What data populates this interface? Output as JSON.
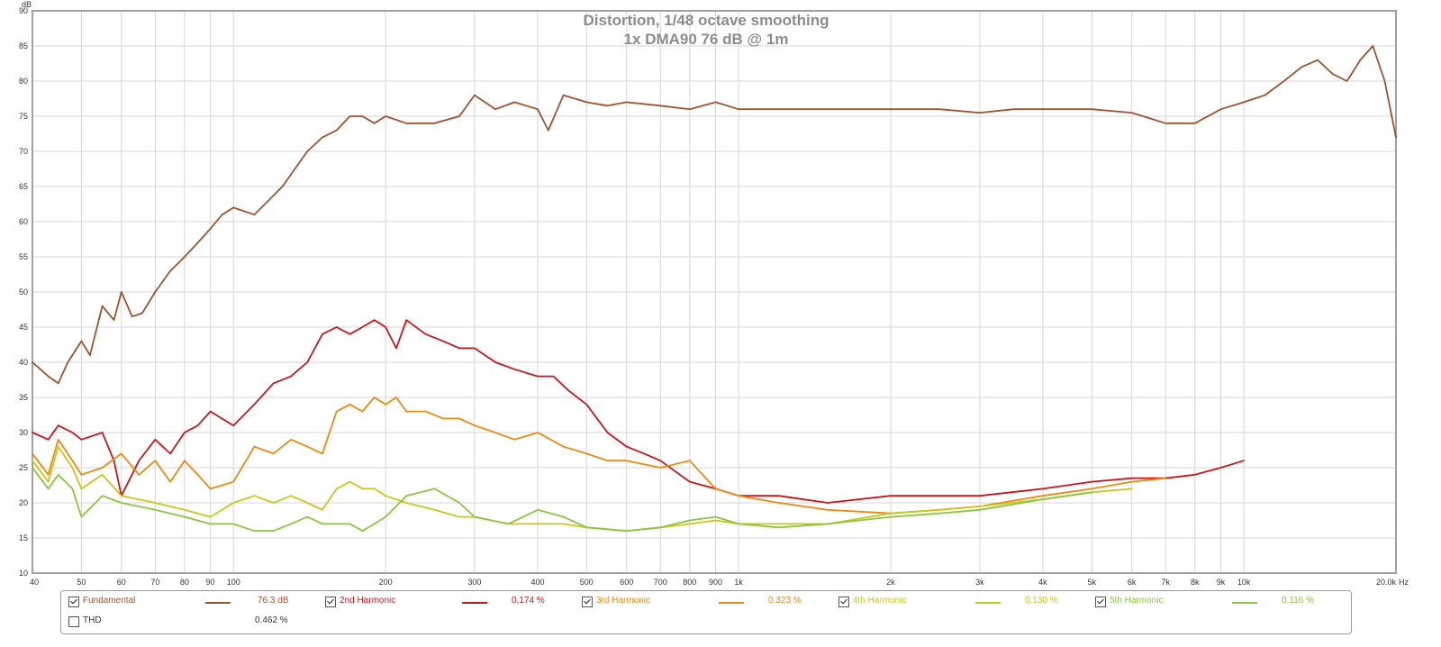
{
  "chart_data": {
    "type": "line",
    "title": "Distortion, 1/48 octave smoothing",
    "subtitle": "1x DMA90 76 dB @ 1m",
    "y_unit": "dB",
    "x_unit": "Hz",
    "xscale": "log",
    "xlim": [
      40,
      20000
    ],
    "ylim": [
      10,
      90
    ],
    "grid": true,
    "y_ticks": [
      10,
      15,
      20,
      25,
      30,
      35,
      40,
      45,
      50,
      55,
      60,
      65,
      70,
      75,
      80,
      85,
      90
    ],
    "x_ticks": [
      {
        "v": 40,
        "label": "40"
      },
      {
        "v": 50,
        "label": "50"
      },
      {
        "v": 60,
        "label": "60"
      },
      {
        "v": 70,
        "label": "70"
      },
      {
        "v": 80,
        "label": "80"
      },
      {
        "v": 90,
        "label": "90"
      },
      {
        "v": 100,
        "label": "100"
      },
      {
        "v": 200,
        "label": "200"
      },
      {
        "v": 300,
        "label": "300"
      },
      {
        "v": 400,
        "label": "400"
      },
      {
        "v": 500,
        "label": "500"
      },
      {
        "v": 600,
        "label": "600"
      },
      {
        "v": 700,
        "label": "700"
      },
      {
        "v": 800,
        "label": "800"
      },
      {
        "v": 900,
        "label": "900"
      },
      {
        "v": 1000,
        "label": "1k"
      },
      {
        "v": 2000,
        "label": "2k"
      },
      {
        "v": 3000,
        "label": "3k"
      },
      {
        "v": 4000,
        "label": "4k"
      },
      {
        "v": 5000,
        "label": "5k"
      },
      {
        "v": 6000,
        "label": "6k"
      },
      {
        "v": 7000,
        "label": "7k"
      },
      {
        "v": 8000,
        "label": "8k"
      },
      {
        "v": 9000,
        "label": "9k"
      },
      {
        "v": 10000,
        "label": "10k"
      },
      {
        "v": 20000,
        "label": "20.0k"
      }
    ],
    "series": [
      {
        "name": "Fundamental",
        "color": "#a0522d",
        "value": "76.3 dB",
        "x": [
          40,
          43,
          45,
          47,
          50,
          52,
          55,
          58,
          60,
          63,
          66,
          70,
          75,
          80,
          85,
          90,
          95,
          100,
          110,
          125,
          140,
          150,
          160,
          170,
          180,
          190,
          200,
          220,
          250,
          280,
          300,
          330,
          360,
          400,
          420,
          450,
          500,
          550,
          600,
          700,
          800,
          900,
          1000,
          1200,
          1500,
          2000,
          2500,
          3000,
          3500,
          4000,
          5000,
          6000,
          7000,
          8000,
          9000,
          10000,
          11000,
          12000,
          13000,
          14000,
          15000,
          16000,
          17000,
          18000,
          19000,
          20000
        ],
        "y": [
          40,
          38,
          37,
          40,
          43,
          41,
          48,
          46,
          50,
          46.5,
          47,
          50,
          53,
          55,
          57,
          59,
          61,
          62,
          61,
          65,
          70,
          72,
          73,
          75,
          75,
          74,
          75,
          74,
          74,
          75,
          78,
          76,
          77,
          76,
          73,
          78,
          77,
          76.5,
          77,
          76.5,
          76,
          77,
          76,
          76,
          76,
          76,
          76,
          75.5,
          76,
          76,
          76,
          75.5,
          74,
          74,
          76,
          77,
          78,
          80,
          82,
          83,
          81,
          80,
          83,
          85,
          80,
          72
        ]
      },
      {
        "name": "2nd Harmonic",
        "color": "#c8161d",
        "value": "0.174 %",
        "x": [
          40,
          43,
          45,
          48,
          50,
          55,
          58,
          60,
          65,
          70,
          75,
          80,
          85,
          90,
          100,
          110,
          120,
          130,
          140,
          150,
          160,
          170,
          180,
          190,
          200,
          210,
          220,
          240,
          260,
          280,
          300,
          330,
          360,
          400,
          430,
          460,
          500,
          550,
          600,
          650,
          700,
          800,
          900,
          1000,
          1200,
          1500,
          2000,
          3000,
          4000,
          5000,
          6000,
          7000,
          8000,
          9000,
          10000
        ],
        "y": [
          30,
          29,
          31,
          30,
          29,
          30,
          26,
          21,
          26,
          29,
          27,
          30,
          31,
          33,
          31,
          34,
          37,
          38,
          40,
          44,
          45,
          44,
          45,
          46,
          45,
          42,
          46,
          44,
          43,
          42,
          42,
          40,
          39,
          38,
          38,
          36,
          34,
          30,
          28,
          27,
          26,
          23,
          22,
          21,
          21,
          20,
          21,
          21,
          22,
          23,
          23.5,
          23.5,
          24,
          25,
          26
        ]
      },
      {
        "name": "3rd Harmonic",
        "color": "#ec8a0e",
        "value": "0.323 %",
        "x": [
          40,
          43,
          45,
          48,
          50,
          55,
          60,
          65,
          70,
          75,
          80,
          85,
          90,
          100,
          110,
          120,
          130,
          140,
          150,
          160,
          170,
          180,
          190,
          200,
          210,
          220,
          240,
          260,
          280,
          300,
          330,
          360,
          400,
          450,
          500,
          550,
          600,
          700,
          800,
          900,
          1000,
          1200,
          1500,
          2000,
          2500,
          3000,
          4000,
          5000,
          6000,
          7000
        ],
        "y": [
          27,
          24,
          29,
          26,
          24,
          25,
          27,
          24,
          26,
          23,
          26,
          24,
          22,
          23,
          28,
          27,
          29,
          28,
          27,
          33,
          34,
          33,
          35,
          34,
          35,
          33,
          33,
          32,
          32,
          31,
          30,
          29,
          30,
          28,
          27,
          26,
          26,
          25,
          26,
          22,
          21,
          20,
          19,
          18.5,
          19,
          19.5,
          21,
          22,
          23,
          23.5
        ]
      },
      {
        "name": "4th Harmonic",
        "color": "#c8c81a",
        "value": "0.130 %",
        "x": [
          40,
          43,
          45,
          48,
          50,
          55,
          60,
          70,
          80,
          90,
          100,
          110,
          120,
          130,
          140,
          150,
          160,
          170,
          180,
          190,
          200,
          220,
          250,
          280,
          300,
          350,
          400,
          450,
          500,
          600,
          700,
          800,
          900,
          1000,
          1200,
          1500,
          2000,
          2500,
          3000,
          4000,
          5000,
          6000
        ],
        "y": [
          26,
          23,
          28,
          25,
          22,
          24,
          21,
          20,
          19,
          18,
          20,
          21,
          20,
          21,
          20,
          19,
          22,
          23,
          22,
          22,
          21,
          20,
          19,
          18,
          18,
          17,
          17,
          17,
          16.5,
          16,
          16.5,
          17,
          17.5,
          17,
          17,
          17,
          18.5,
          19,
          19.5,
          20.5,
          21.5,
          22
        ]
      },
      {
        "name": "5th Harmonic",
        "color": "#8cc63f",
        "value": "0.116 %",
        "x": [
          40,
          43,
          45,
          48,
          50,
          55,
          60,
          70,
          80,
          90,
          100,
          110,
          120,
          130,
          140,
          150,
          160,
          170,
          180,
          190,
          200,
          220,
          250,
          280,
          300,
          350,
          400,
          450,
          500,
          600,
          700,
          800,
          900,
          1000,
          1200,
          1500,
          2000,
          2500,
          3000,
          4000,
          5000
        ],
        "y": [
          25,
          22,
          24,
          22,
          18,
          21,
          20,
          19,
          18,
          17,
          17,
          16,
          16,
          17,
          18,
          17,
          17,
          17,
          16,
          17,
          18,
          21,
          22,
          20,
          18,
          17,
          19,
          18,
          16.5,
          16,
          16.5,
          17.5,
          18,
          17,
          16.5,
          17,
          18,
          18.5,
          19,
          20.5,
          21.5
        ]
      }
    ],
    "thd": {
      "name": "THD",
      "value": "0.462 %",
      "checked": false
    }
  }
}
